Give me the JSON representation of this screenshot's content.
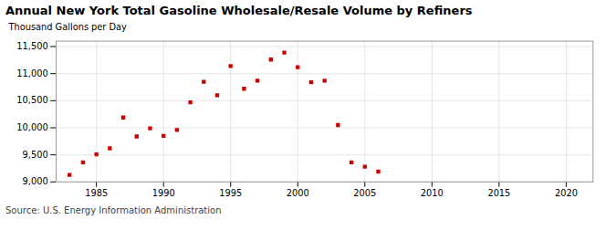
{
  "chart_data": {
    "type": "scatter",
    "title": "Annual New York Total Gasoline Wholesale/Resale Volume by Refiners",
    "ylabel": "Thousand Gallons per Day",
    "caption": "Source: U.S. Energy Information Administration",
    "x": [
      1983,
      1984,
      1985,
      1986,
      1987,
      1988,
      1989,
      1990,
      1991,
      1992,
      1993,
      1994,
      1995,
      1996,
      1997,
      1998,
      1999,
      2000,
      2001,
      2002,
      2003,
      2004,
      2005,
      2006
    ],
    "values": [
      9130,
      9360,
      9510,
      9620,
      10190,
      9840,
      9990,
      9850,
      9960,
      10470,
      10850,
      10600,
      11140,
      10720,
      10870,
      11260,
      11390,
      11120,
      10840,
      10870,
      10050,
      9360,
      9280,
      9190
    ],
    "color": "#cc0000",
    "marker": "square",
    "xlim": [
      1982,
      2022
    ],
    "xticks": [
      1985,
      1990,
      1995,
      2000,
      2005,
      2010,
      2015,
      2020
    ],
    "ylim": [
      9000,
      11600
    ],
    "yticks": [
      {
        "value": 9000,
        "label": "9,000"
      },
      {
        "value": 9500,
        "label": "9,500"
      },
      {
        "value": 10000,
        "label": "10,000"
      },
      {
        "value": 10500,
        "label": "10,500"
      },
      {
        "value": 11000,
        "label": "11,000"
      },
      {
        "value": 11500,
        "label": "11,500"
      }
    ],
    "grid": true
  }
}
